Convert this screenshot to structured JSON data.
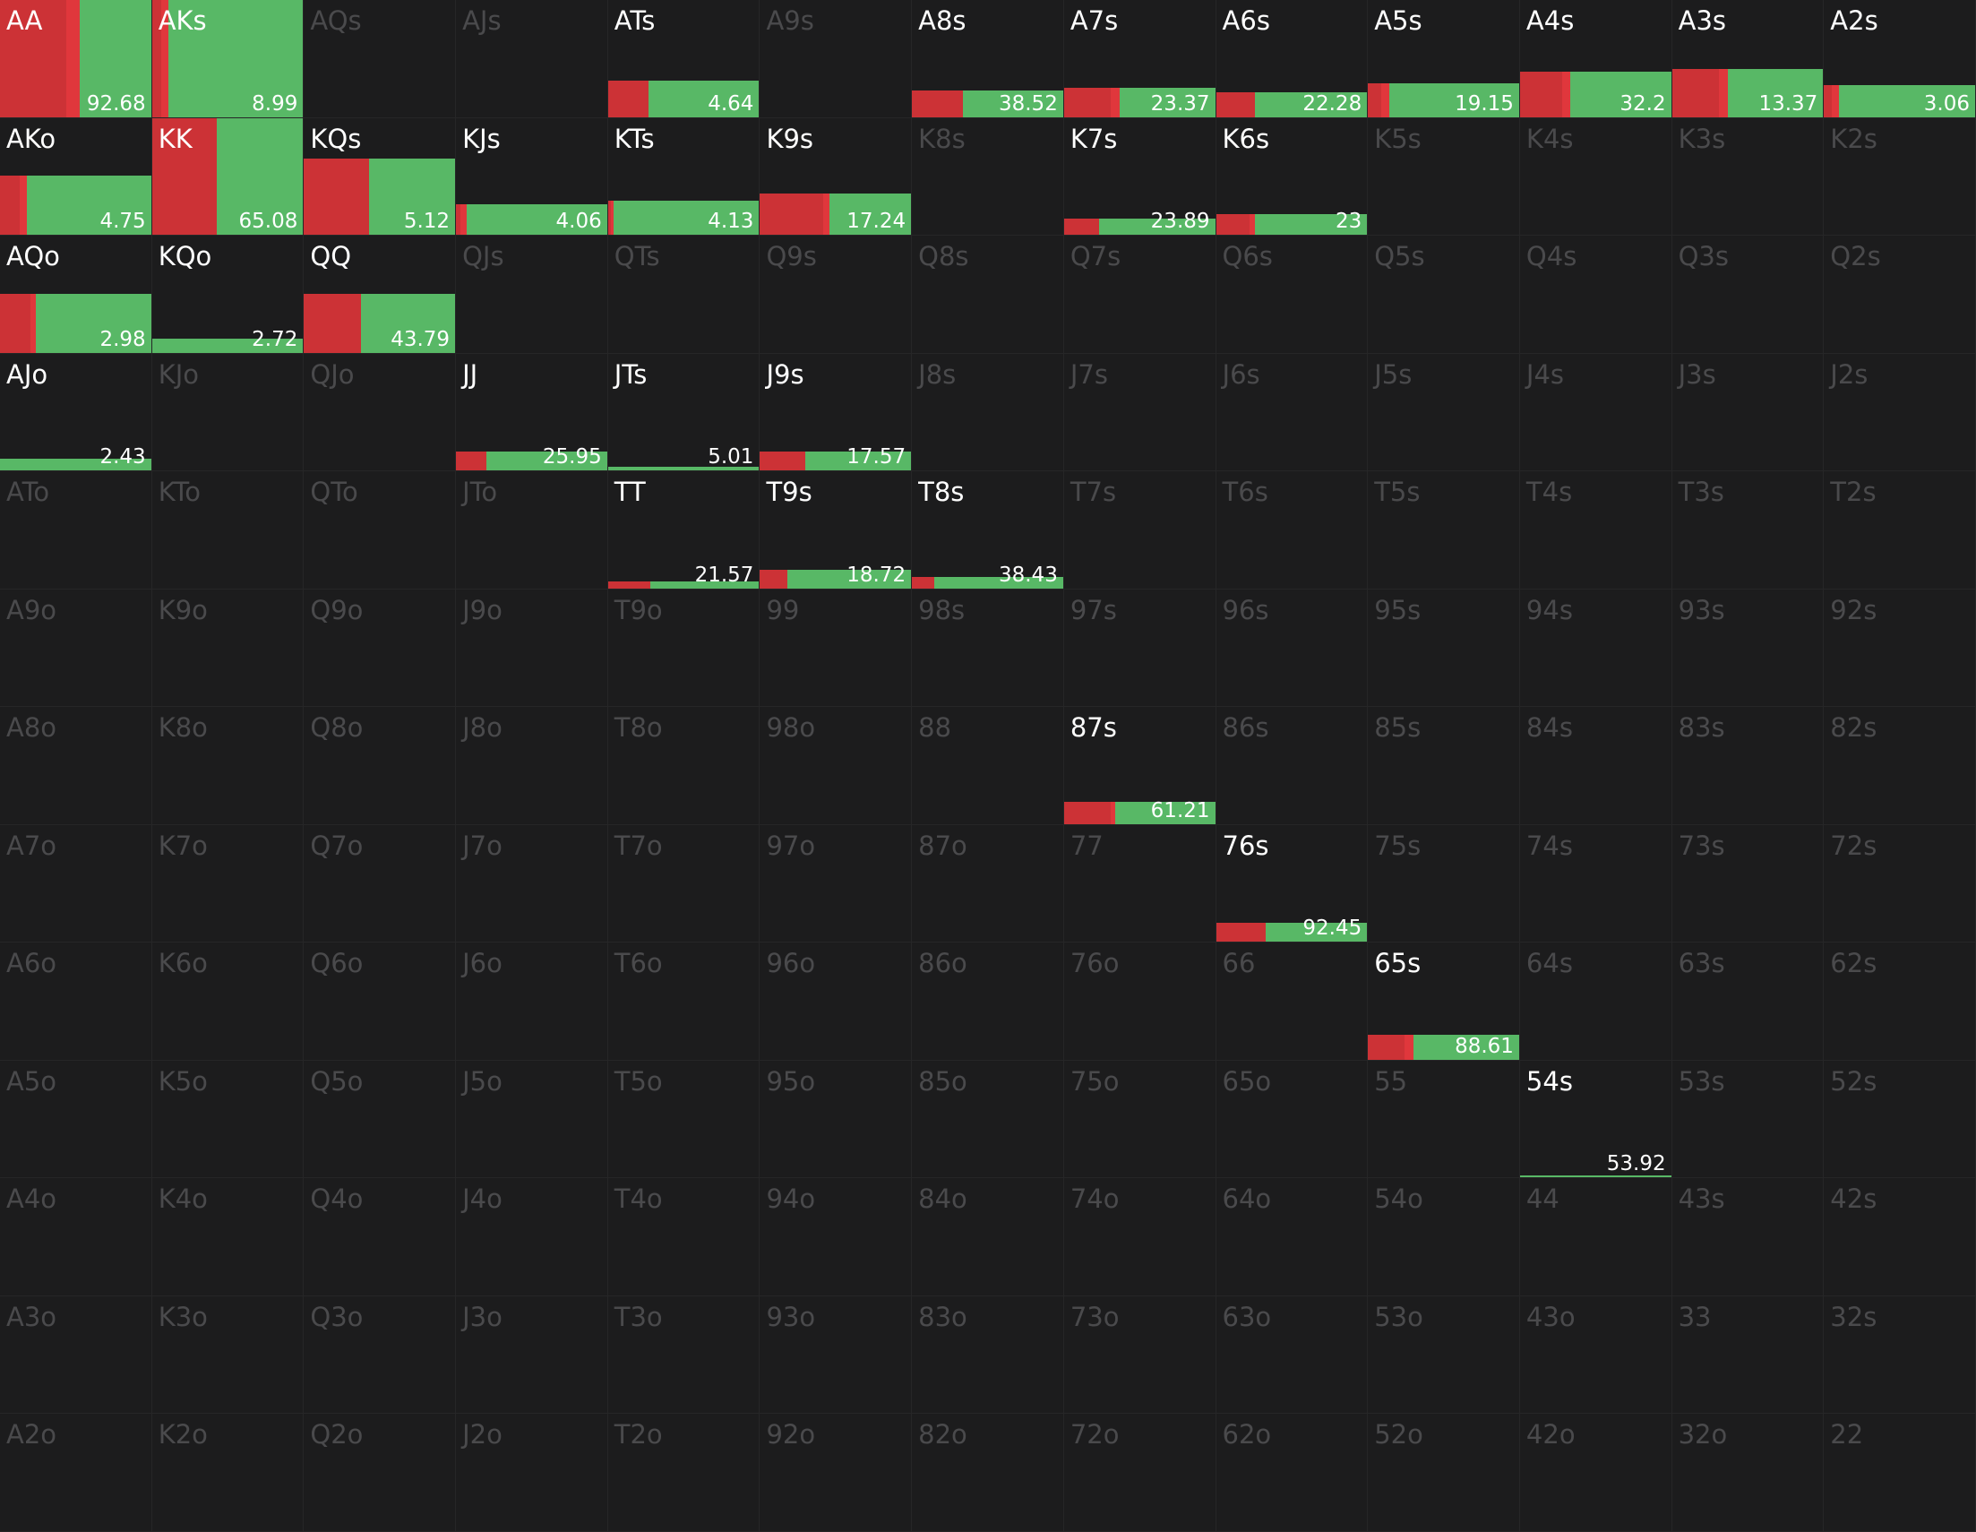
{
  "grid": {
    "colors": {
      "background": "#1c1c1d",
      "fold": "#cc3236",
      "raise": "#58b866",
      "inactive_text": "#4a4a4c",
      "active_text": "#ffffff"
    },
    "hands": [
      [
        "AA",
        "AKs",
        "AQs",
        "AJs",
        "ATs",
        "A9s",
        "A8s",
        "A7s",
        "A6s",
        "A5s",
        "A4s",
        "A3s",
        "A2s"
      ],
      [
        "AKo",
        "KK",
        "KQs",
        "KJs",
        "KTs",
        "K9s",
        "K8s",
        "K7s",
        "K6s",
        "K5s",
        "K4s",
        "K3s",
        "K2s"
      ],
      [
        "AQo",
        "KQo",
        "QQ",
        "QJs",
        "QTs",
        "Q9s",
        "Q8s",
        "Q7s",
        "Q6s",
        "Q5s",
        "Q4s",
        "Q3s",
        "Q2s"
      ],
      [
        "AJo",
        "KJo",
        "QJo",
        "JJ",
        "JTs",
        "J9s",
        "J8s",
        "J7s",
        "J6s",
        "J5s",
        "J4s",
        "J3s",
        "J2s"
      ],
      [
        "ATo",
        "KTo",
        "QTo",
        "JTo",
        "TT",
        "T9s",
        "T8s",
        "T7s",
        "T6s",
        "T5s",
        "T4s",
        "T3s",
        "T2s"
      ],
      [
        "A9o",
        "K9o",
        "Q9o",
        "J9o",
        "T9o",
        "99",
        "98s",
        "97s",
        "96s",
        "95s",
        "94s",
        "93s",
        "92s"
      ],
      [
        "A8o",
        "K8o",
        "Q8o",
        "J8o",
        "T8o",
        "98o",
        "88",
        "87s",
        "86s",
        "85s",
        "84s",
        "83s",
        "82s"
      ],
      [
        "A7o",
        "K7o",
        "Q7o",
        "J7o",
        "T7o",
        "97o",
        "87o",
        "77",
        "76s",
        "75s",
        "74s",
        "73s",
        "72s"
      ],
      [
        "A6o",
        "K6o",
        "Q6o",
        "J6o",
        "T6o",
        "96o",
        "86o",
        "76o",
        "66",
        "65s",
        "64s",
        "63s",
        "62s"
      ],
      [
        "A5o",
        "K5o",
        "Q5o",
        "J5o",
        "T5o",
        "95o",
        "85o",
        "75o",
        "65o",
        "55",
        "54s",
        "53s",
        "52s"
      ],
      [
        "A4o",
        "K4o",
        "Q4o",
        "J4o",
        "T4o",
        "94o",
        "84o",
        "74o",
        "64o",
        "54o",
        "44",
        "43s",
        "42s"
      ],
      [
        "A3o",
        "K3o",
        "Q3o",
        "J3o",
        "T3o",
        "93o",
        "83o",
        "73o",
        "63o",
        "53o",
        "43o",
        "33",
        "32s"
      ],
      [
        "A2o",
        "K2o",
        "Q2o",
        "J2o",
        "T2o",
        "92o",
        "82o",
        "72o",
        "62o",
        "52o",
        "42o",
        "32o",
        "22"
      ]
    ],
    "frequencies": {
      "AA": {
        "label": "92.68",
        "level": 100,
        "red": 0.44,
        "red2": 0.09
      },
      "AKs": {
        "label": "8.99",
        "level": 100,
        "red": 0.06,
        "red2": 0.05
      },
      "ATs": {
        "label": "4.64",
        "level": 31,
        "red": 0.27,
        "red2": 0.0
      },
      "A8s": {
        "label": "38.52",
        "level": 23,
        "red": 0.34,
        "red2": 0.0
      },
      "A7s": {
        "label": "23.37",
        "level": 25,
        "red": 0.31,
        "red2": 0.06
      },
      "A6s": {
        "label": "22.28",
        "level": 21,
        "red": 0.26,
        "red2": 0.0
      },
      "A5s": {
        "label": "19.15",
        "level": 29,
        "red": 0.09,
        "red2": 0.05
      },
      "A4s": {
        "label": "32.2",
        "level": 39,
        "red": 0.28,
        "red2": 0.05
      },
      "A3s": {
        "label": "13.37",
        "level": 41,
        "red": 0.31,
        "red2": 0.06
      },
      "A2s": {
        "label": "3.06",
        "level": 27,
        "red": 0.05,
        "red2": 0.05
      },
      "AKo": {
        "label": "4.75",
        "level": 51,
        "red": 0.13,
        "red2": 0.05
      },
      "KK": {
        "label": "65.08",
        "level": 100,
        "red": 0.43,
        "red2": 0.0
      },
      "KQs": {
        "label": "5.12",
        "level": 65,
        "red": 0.43,
        "red2": 0.0
      },
      "KJs": {
        "label": "4.06",
        "level": 26,
        "red": 0.03,
        "red2": 0.04
      },
      "KTs": {
        "label": "4.13",
        "level": 29,
        "red": 0.02,
        "red2": 0.02
      },
      "K9s": {
        "label": "17.24",
        "level": 35,
        "red": 0.42,
        "red2": 0.04
      },
      "K7s": {
        "label": "23.89",
        "level": 14,
        "red": 0.23,
        "red2": 0.0
      },
      "K6s": {
        "label": "23",
        "level": 18,
        "red": 0.22,
        "red2": 0.04
      },
      "AQo": {
        "label": "2.98",
        "level": 50,
        "red": 0.2,
        "red2": 0.04
      },
      "KQo": {
        "label": "2.72",
        "level": 12,
        "red": 0.0,
        "red2": 0.0
      },
      "QQ": {
        "label": "43.79",
        "level": 50,
        "red": 0.38,
        "red2": 0.0
      },
      "AJo": {
        "label": "2.43",
        "level": 10,
        "red": 0.0,
        "red2": 0.0
      },
      "JJ": {
        "label": "25.95",
        "level": 16,
        "red": 0.2,
        "red2": 0.0
      },
      "JTs": {
        "label": "5.01",
        "level": 3,
        "red": 0.0,
        "red2": 0.0
      },
      "J9s": {
        "label": "17.57",
        "level": 16,
        "red": 0.3,
        "red2": 0.0
      },
      "TT": {
        "label": "21.57",
        "level": 6,
        "red": 0.28,
        "red2": 0.0
      },
      "T9s": {
        "label": "18.72",
        "level": 16,
        "red": 0.18,
        "red2": 0.0
      },
      "T8s": {
        "label": "38.43",
        "level": 10,
        "red": 0.15,
        "red2": 0.0
      },
      "87s": {
        "label": "61.21",
        "level": 19,
        "red": 0.31,
        "red2": 0.03
      },
      "76s": {
        "label": "92.45",
        "level": 16,
        "red": 0.33,
        "red2": 0.0
      },
      "65s": {
        "label": "88.61",
        "level": 21,
        "red": 0.24,
        "red2": 0.06
      },
      "54s": {
        "label": "53.92",
        "level": 2,
        "red": 0.0,
        "red2": 0.0
      }
    }
  }
}
